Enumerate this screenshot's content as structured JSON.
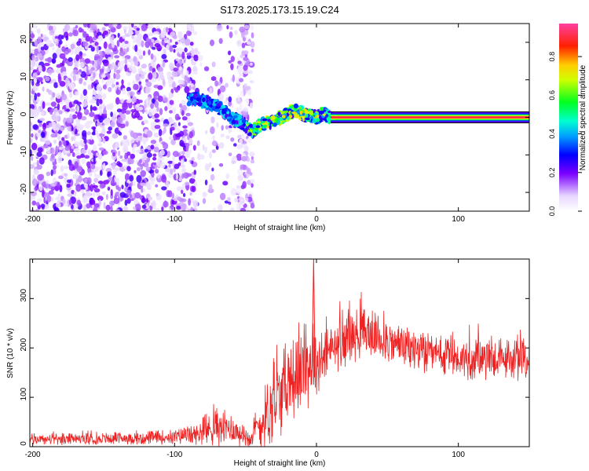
{
  "title": "S173.2025.173.15.19.C24",
  "chart_data": [
    {
      "type": "heatmap",
      "xlabel": "Height of straight line (km)",
      "ylabel": "Frequency (Hz)",
      "xlim": [
        -202,
        150
      ],
      "ylim": [
        -25,
        25
      ],
      "x_ticks": [
        -200,
        -100,
        0,
        100
      ],
      "y_ticks": [
        -20,
        -10,
        0,
        10,
        20
      ],
      "colorbar": {
        "label": "Normalized spectral amplitude",
        "range": [
          0,
          1
        ],
        "ticks": [
          "0.0",
          "0.2",
          "0.4",
          "0.6",
          "0.8"
        ]
      },
      "features": [
        {
          "region": "noise",
          "x_range": [
            -202,
            -45
          ],
          "freq_range": [
            -25,
            25
          ],
          "amplitude": [
            0.05,
            0.25
          ]
        },
        {
          "region": "transition",
          "x": [
            -85,
            -70,
            -60,
            -50,
            -45,
            -40,
            -30,
            -20,
            -15,
            -10,
            0,
            5,
            10
          ],
          "freq": [
            5,
            3,
            0,
            -2,
            -4,
            -2,
            -1,
            1,
            2,
            1,
            0,
            1,
            0
          ]
        },
        {
          "region": "carrier",
          "x_range": [
            10,
            150
          ],
          "freq": 0,
          "amplitude": 1.0
        }
      ]
    },
    {
      "type": "line",
      "xlabel": "Height of straight line (km)",
      "ylabel": "SNR (10 * v/v)",
      "xlim": [
        -202,
        150
      ],
      "ylim": [
        0,
        380
      ],
      "x_ticks": [
        -200,
        -100,
        0,
        100
      ],
      "y_ticks": [
        0,
        100,
        200,
        300
      ],
      "color": "#ee2222",
      "series": [
        {
          "x": [
            -200,
            -180,
            -160,
            -140,
            -120,
            -100,
            -90,
            -80,
            -70,
            -60,
            -50,
            -45,
            -40,
            -35,
            -30,
            -25,
            -20,
            -15,
            -10,
            -5,
            -2,
            0,
            5,
            10,
            20,
            30,
            40,
            50,
            60,
            80,
            100,
            120,
            150
          ],
          "mean": [
            15,
            15,
            16,
            17,
            18,
            20,
            22,
            28,
            40,
            35,
            20,
            25,
            45,
            65,
            85,
            110,
            130,
            140,
            150,
            165,
            190,
            175,
            180,
            200,
            215,
            230,
            225,
            215,
            205,
            185,
            180,
            178,
            175
          ],
          "peak": [
            30,
            32,
            33,
            34,
            35,
            40,
            42,
            60,
            120,
            80,
            40,
            50,
            170,
            190,
            220,
            250,
            240,
            230,
            280,
            300,
            380,
            250,
            260,
            290,
            300,
            315,
            305,
            280,
            260,
            240,
            255,
            250,
            235
          ],
          "spread": [
            12,
            12,
            12,
            13,
            14,
            16,
            18,
            25,
            40,
            35,
            20,
            28,
            60,
            70,
            80,
            90,
            90,
            85,
            85,
            90,
            90,
            70,
            65,
            60,
            55,
            55,
            52,
            50,
            48,
            45,
            45,
            45,
            45
          ]
        }
      ]
    }
  ]
}
